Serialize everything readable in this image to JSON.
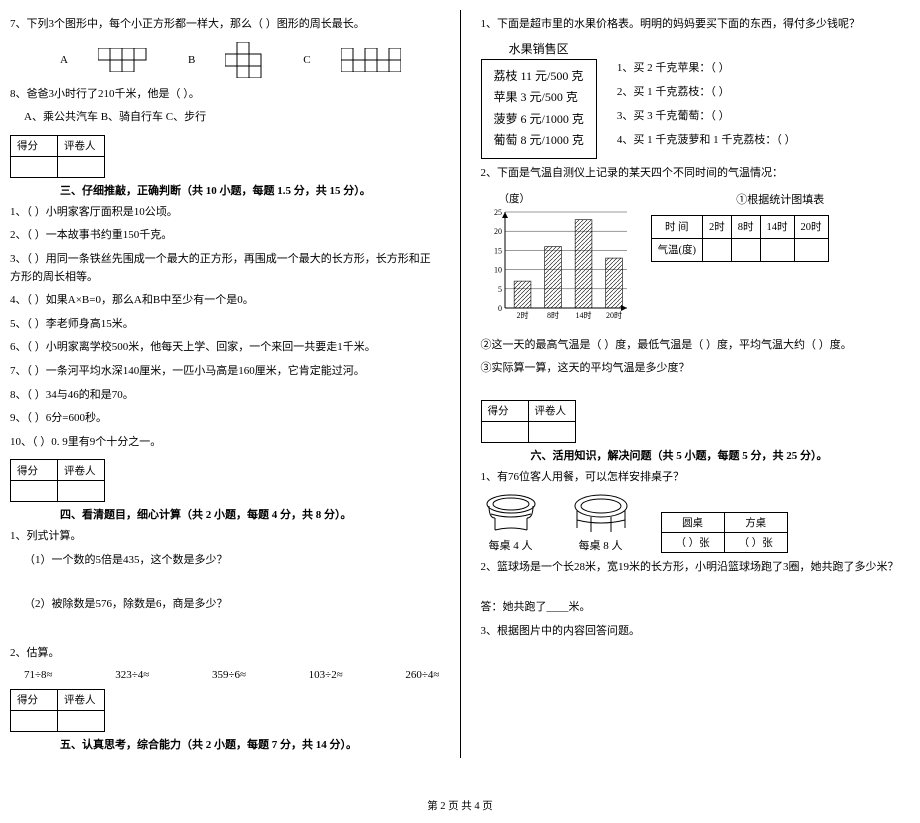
{
  "left": {
    "q7": "7、下列3个图形中，每个小正方形都一样大，那么（    ）图形的周长最长。",
    "q7_labels": [
      "A",
      "B",
      "C"
    ],
    "q8": "8、爸爸3小时行了210千米，他是（      ）。",
    "q8_opts": "A、乘公共汽车      B、骑自行车      C、步行",
    "score_header": [
      "得分",
      "评卷人"
    ],
    "sec3": "三、仔细推敲，正确判断（共 10 小题，每题 1.5 分，共 15 分）。",
    "s3": [
      "1、（      ）小明家客厅面积是10公顷。",
      "2、（      ）一本故事书约重150千克。",
      "3、（      ）用同一条铁丝先围成一个最大的正方形，再围成一个最大的长方形，长方形和正方形的周长相等。",
      "4、（      ）如果A×B=0，那么A和B中至少有一个是0。",
      "5、（      ）李老师身高15米。",
      "6、（      ）小明家离学校500米，他每天上学、回家，一个来回一共要走1千米。",
      "7、（      ）一条河平均水深140厘米，一匹小马高是160厘米，它肯定能过河。",
      "8、（      ）34与46的和是70。",
      "9、（      ）6分=600秒。",
      "10、（      ）0. 9里有9个十分之一。"
    ],
    "sec4": "四、看清题目，细心计算（共 2 小题，每题 4 分，共 8 分）。",
    "s4_1": "1、列式计算。",
    "s4_1a": "（1）一个数的5倍是435，这个数是多少？",
    "s4_1b": "（2）被除数是576，除数是6，商是多少？",
    "s4_2": "2、估算。",
    "est": [
      "71÷8≈",
      "323÷4≈",
      "359÷6≈",
      "103÷2≈",
      "260÷4≈"
    ],
    "sec5": "五、认真思考，综合能力（共 2 小题，每题 7 分，共 14 分）。"
  },
  "right": {
    "q1": "1、下面是超市里的水果价格表。明明的妈妈要买下面的东西，得付多少钱呢？",
    "fruit_title": "水果销售区",
    "fruit_items": [
      "荔枝 11 元/500 克",
      "苹果 3 元/500 克",
      "菠萝 6 元/1000 克",
      "葡萄 8 元/1000 克"
    ],
    "fruit_q": [
      "1、买 2 千克苹果：（        ）",
      "2、买 1 千克荔枝：（        ）",
      "3、买 3 千克葡萄：（        ）",
      "4、买 1 千克菠萝和 1 千克荔枝：（    ）"
    ],
    "q2": "2、下面是气温自测仪上记录的某天四个不同时间的气温情况：",
    "chart_ylabel": "（度）",
    "chart_note": "①根据统计图填表",
    "chart_y_ticks": [
      25,
      20,
      15,
      10,
      5,
      0
    ],
    "chart_x_ticks": [
      "2时",
      "8时",
      "14时",
      "20时"
    ],
    "chart_bars": [
      7,
      16,
      23,
      13
    ],
    "chart_ymax": 25,
    "chart_bar_color": "#9aa0a6",
    "chart_bar_pattern": true,
    "chart_bg": "#ffffff",
    "chart_grid": "#000000",
    "temp_table_head": [
      "时 间",
      "2时",
      "8时",
      "14时",
      "20时"
    ],
    "temp_table_row": [
      "气温(度)",
      "",
      "",
      "",
      ""
    ],
    "q2b": "②这一天的最高气温是（      ）度，最低气温是（      ）度，平均气温大约（      ）度。",
    "q2c": "③实际算一算，这天的平均气温是多少度？",
    "sec6": "六、活用知识，解决问题（共 5 小题，每题 5 分，共 25 分）。",
    "s6_1": "1、有76位客人用餐，可以怎样安排桌子？",
    "round_label": "每桌 4 人",
    "square_label": "每桌 8 人",
    "table_head": [
      "圆桌",
      "方桌"
    ],
    "table_row": [
      "（      ）张",
      "（      ）张"
    ],
    "s6_2": "2、篮球场是一个长28米，宽19米的长方形，小明沿篮球场跑了3圈，她共跑了多少米？",
    "s6_2a": "答：她共跑了____米。",
    "s6_3": "3、根据图片中的内容回答问题。"
  },
  "footer": "第 2 页 共 4 页",
  "score_header": [
    "得分",
    "评卷人"
  ]
}
